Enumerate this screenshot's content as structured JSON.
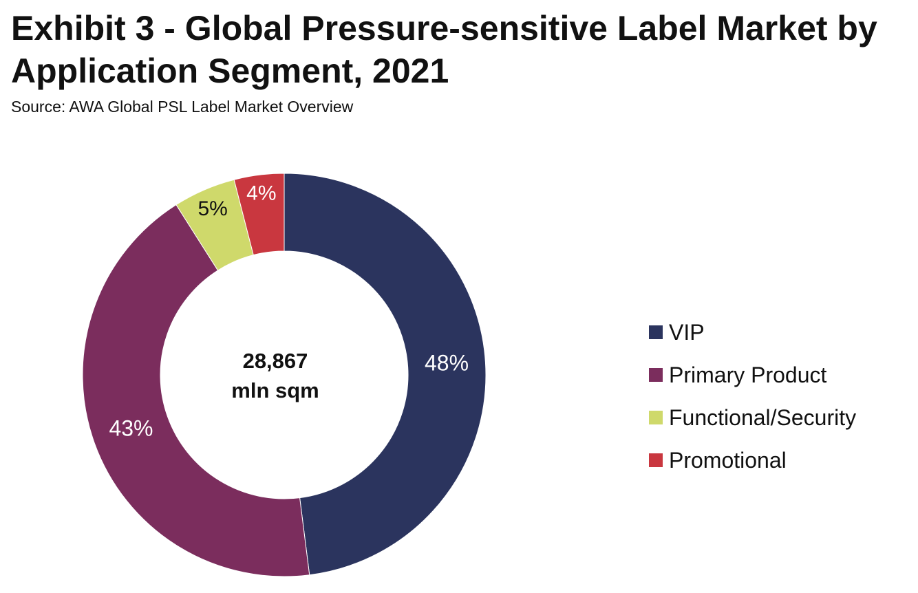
{
  "title": "Exhibit 3 - Global Pressure-sensitive Label Market by Application Segment, 2021",
  "subtitle": "Source: AWA Global PSL Label Market Overview",
  "chart_data": {
    "type": "pie",
    "title": "Exhibit 3 - Global Pressure-sensitive Label Market by Application Segment, 2021",
    "center_label": [
      "28,867",
      "mln sqm"
    ],
    "categories": [
      "VIP",
      "Primary Product",
      "Functional/Security",
      "Promotional"
    ],
    "values": [
      48,
      43,
      5,
      4
    ],
    "labels": [
      "48%",
      "43%",
      "5%",
      "4%"
    ],
    "colors": [
      "#2b345e",
      "#7b2d5d",
      "#cfd96b",
      "#c9373f"
    ],
    "label_colors": [
      "#ffffff",
      "#ffffff",
      "#111111",
      "#ffffff"
    ],
    "donut": true,
    "legend_position": "right"
  }
}
